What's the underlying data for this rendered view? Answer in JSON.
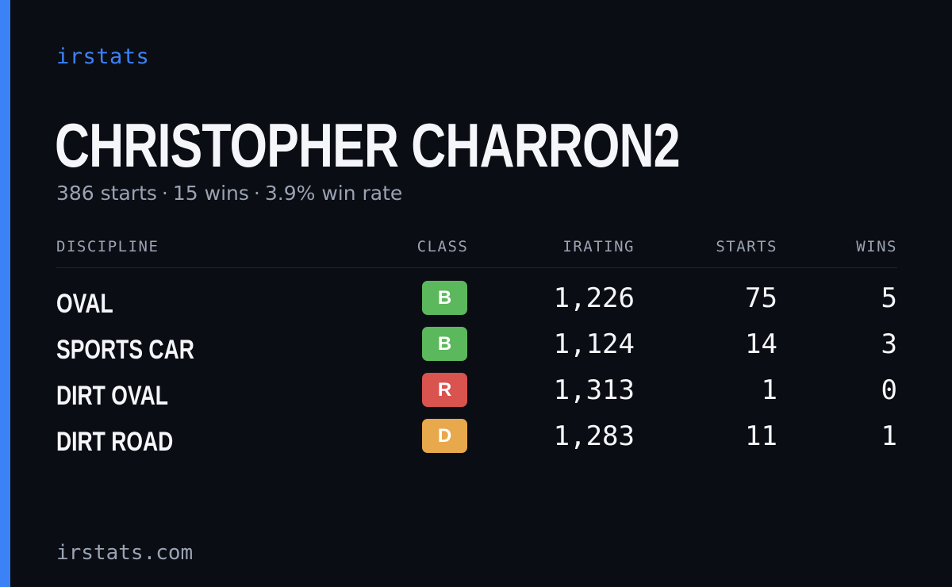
{
  "brand": {
    "label": "irstats",
    "accent_color": "#3b82f6"
  },
  "driver": {
    "name": "CHRISTOPHER CHARRON2"
  },
  "summary": {
    "starts": "386 starts",
    "wins": "15 wins",
    "win_rate": "3.9% win rate",
    "separator": "·"
  },
  "table": {
    "headers": {
      "discipline": "DISCIPLINE",
      "class": "CLASS",
      "irating": "IRATING",
      "starts": "STARTS",
      "wins": "WINS"
    },
    "rows": [
      {
        "discipline": "OVAL",
        "class": "B",
        "class_color": "#5cb85c",
        "irating": "1,226",
        "starts": "75",
        "wins": "5"
      },
      {
        "discipline": "SPORTS CAR",
        "class": "B",
        "class_color": "#5cb85c",
        "irating": "1,124",
        "starts": "14",
        "wins": "3"
      },
      {
        "discipline": "DIRT OVAL",
        "class": "R",
        "class_color": "#d9534f",
        "irating": "1,313",
        "starts": "1",
        "wins": "0"
      },
      {
        "discipline": "DIRT ROAD",
        "class": "D",
        "class_color": "#e8a84c",
        "irating": "1,283",
        "starts": "11",
        "wins": "1"
      }
    ]
  },
  "footer": {
    "url": "irstats.com"
  }
}
